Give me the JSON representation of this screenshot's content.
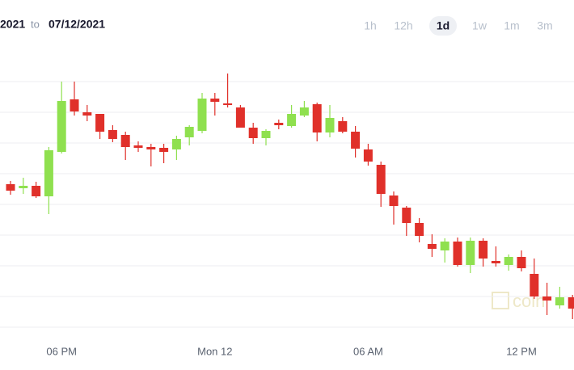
{
  "header": {
    "from_date": "2021",
    "separator": "to",
    "to_date": "07/12/2021"
  },
  "range_buttons": [
    "1h",
    "12h",
    "1d",
    "1w",
    "1m",
    "3m"
  ],
  "selected_range": 2,
  "watermark": "coin",
  "chart_data": {
    "type": "candlestick",
    "categories": [
      null,
      null,
      null,
      null,
      "06 PM",
      null,
      null,
      null,
      null,
      null,
      null,
      null,
      null,
      null,
      null,
      null,
      "Mon 12",
      null,
      null,
      null,
      null,
      null,
      null,
      null,
      null,
      null,
      null,
      null,
      "06 AM",
      null,
      null,
      null,
      null,
      null,
      null,
      null,
      null,
      null,
      null,
      null,
      "12 PM",
      null,
      null,
      null,
      null
    ],
    "open": [
      177,
      172,
      175,
      162,
      217,
      282,
      266,
      264,
      244,
      238,
      225,
      223,
      222,
      220,
      235,
      243,
      283,
      277,
      272,
      247,
      234,
      253,
      249,
      262,
      276,
      241,
      255,
      242,
      220,
      201,
      163,
      148,
      129,
      103,
      95,
      106,
      77,
      107,
      82,
      77,
      87,
      66,
      38,
      27,
      37
    ],
    "high": [
      181,
      185,
      180,
      223,
      304,
      304,
      275,
      264,
      250,
      242,
      230,
      227,
      227,
      237,
      250,
      290,
      290,
      314,
      275,
      253,
      245,
      257,
      275,
      280,
      278,
      275,
      260,
      249,
      227,
      205,
      168,
      150,
      135,
      115,
      110,
      111,
      111,
      110,
      100,
      90,
      95,
      85,
      55,
      50,
      40
    ],
    "low": [
      164,
      165,
      160,
      140,
      215,
      262,
      255,
      233,
      229,
      207,
      217,
      199,
      203,
      207,
      225,
      240,
      262,
      272,
      247,
      227,
      225,
      245,
      247,
      260,
      230,
      235,
      240,
      210,
      200,
      149,
      127,
      113,
      105,
      87,
      80,
      75,
      67,
      75,
      75,
      70,
      69,
      35,
      15,
      23,
      10
    ],
    "close": [
      169,
      175,
      162,
      219,
      280,
      267,
      262,
      242,
      233,
      223,
      222,
      220,
      217,
      233,
      248,
      283,
      279,
      275,
      247,
      234,
      243,
      250,
      264,
      272,
      241,
      259,
      242,
      221,
      205,
      165,
      150,
      129,
      113,
      97,
      106,
      77,
      107,
      85,
      79,
      87,
      73,
      38,
      33,
      37,
      23
    ],
    "up_color": "#8fe04f",
    "down_color": "#e0302a",
    "ylim": [
      0,
      304
    ],
    "yticks": [
      0,
      38,
      76,
      114,
      152,
      190,
      228,
      266,
      304
    ],
    "grid": true
  }
}
